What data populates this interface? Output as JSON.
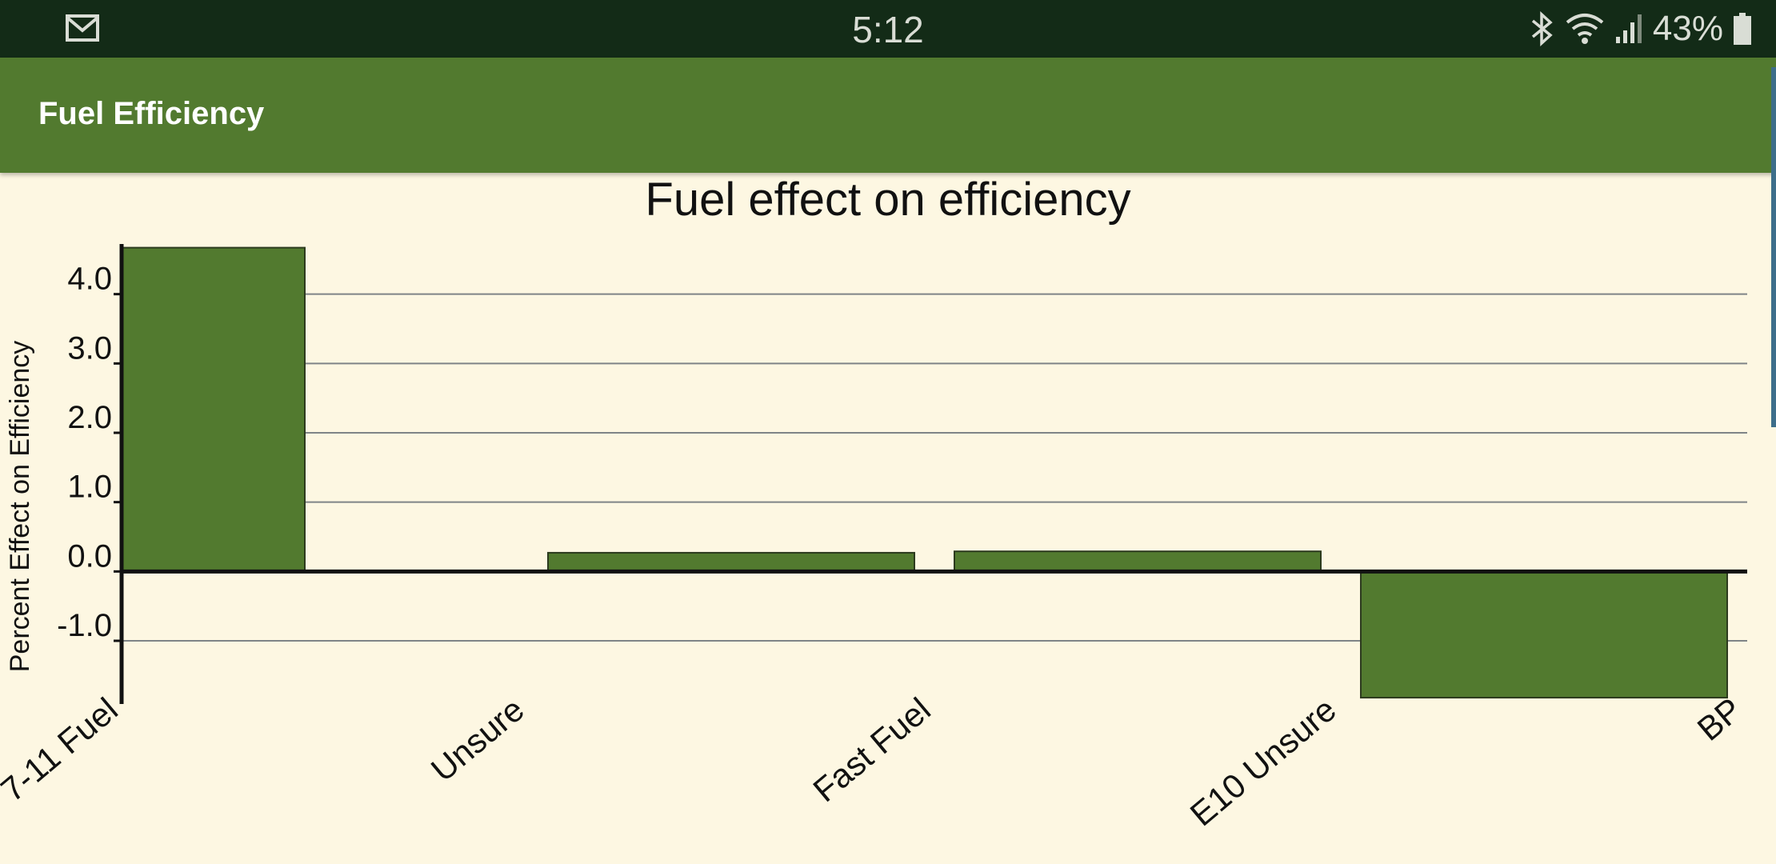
{
  "status_bar": {
    "time": "5:12",
    "battery": "43%",
    "icons": [
      "gmail-icon",
      "bluetooth-icon",
      "wifi-icon",
      "signal-icon",
      "battery-icon"
    ]
  },
  "app_bar": {
    "title": "Fuel Efficiency"
  },
  "colors": {
    "status_bar_bg": "#132B17",
    "app_bar_bg": "#527A2F",
    "page_bg": "#FDF7E2",
    "bar_fill": "#527A2F"
  },
  "chart_data": {
    "type": "bar",
    "title": "Fuel effect on efficiency",
    "xlabel": "",
    "ylabel": "Percent Effect on Efficiency",
    "categories": [
      "7-11 Fuel",
      "Unsure",
      "Fast Fuel",
      "E10 Unsure",
      "BP"
    ],
    "values": [
      4.67,
      0.27,
      0.29,
      -1.82,
      0.0
    ],
    "ylim": [
      -1.9,
      4.7
    ],
    "yticks": [
      "-1.0",
      "0.0",
      "1.0",
      "2.0",
      "3.0",
      "4.0"
    ],
    "grid": true
  }
}
